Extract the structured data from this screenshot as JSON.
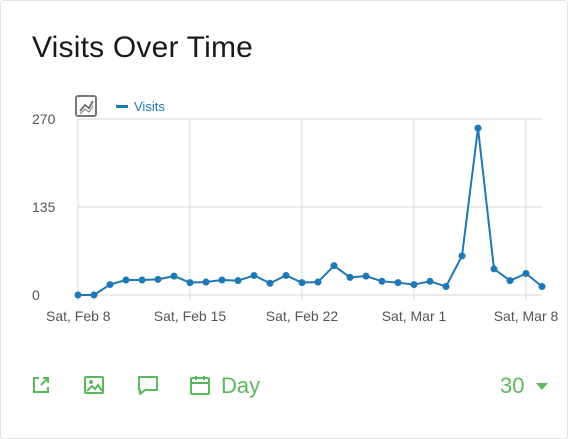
{
  "widget": {
    "title": "Visits Over Time"
  },
  "footer": {
    "period_label": "Day",
    "limit_value": "30",
    "icons": [
      "export-icon",
      "image-icon",
      "annotation-icon",
      "calendar-icon"
    ]
  },
  "colors": {
    "series": "#1f78b4",
    "footer": "#5cb85c",
    "grid": "#d9d9d9"
  },
  "chart_data": {
    "type": "line",
    "legend": [
      "Visits"
    ],
    "ylim": [
      0,
      270
    ],
    "yticks": [
      "0",
      "135",
      "270"
    ],
    "xticks": [
      "Sat, Feb 8",
      "Sat, Feb 15",
      "Sat, Feb 22",
      "Sat, Mar 1",
      "Sat, Mar 8"
    ],
    "x": [
      "Feb 8",
      "Feb 9",
      "Feb 10",
      "Feb 11",
      "Feb 12",
      "Feb 13",
      "Feb 14",
      "Feb 15",
      "Feb 16",
      "Feb 17",
      "Feb 18",
      "Feb 19",
      "Feb 20",
      "Feb 21",
      "Feb 22",
      "Feb 23",
      "Feb 24",
      "Feb 25",
      "Feb 26",
      "Feb 27",
      "Feb 28",
      "Mar 1",
      "Mar 2",
      "Mar 3",
      "Mar 4",
      "Mar 5",
      "Mar 6",
      "Mar 7",
      "Mar 8",
      "Mar 9"
    ],
    "series": [
      {
        "name": "Visits",
        "values": [
          0,
          0,
          16,
          23,
          23,
          24,
          29,
          19,
          20,
          23,
          22,
          30,
          18,
          30,
          19,
          20,
          45,
          27,
          29,
          21,
          19,
          16,
          21,
          13,
          60,
          256,
          40,
          22,
          33,
          13
        ]
      }
    ]
  }
}
